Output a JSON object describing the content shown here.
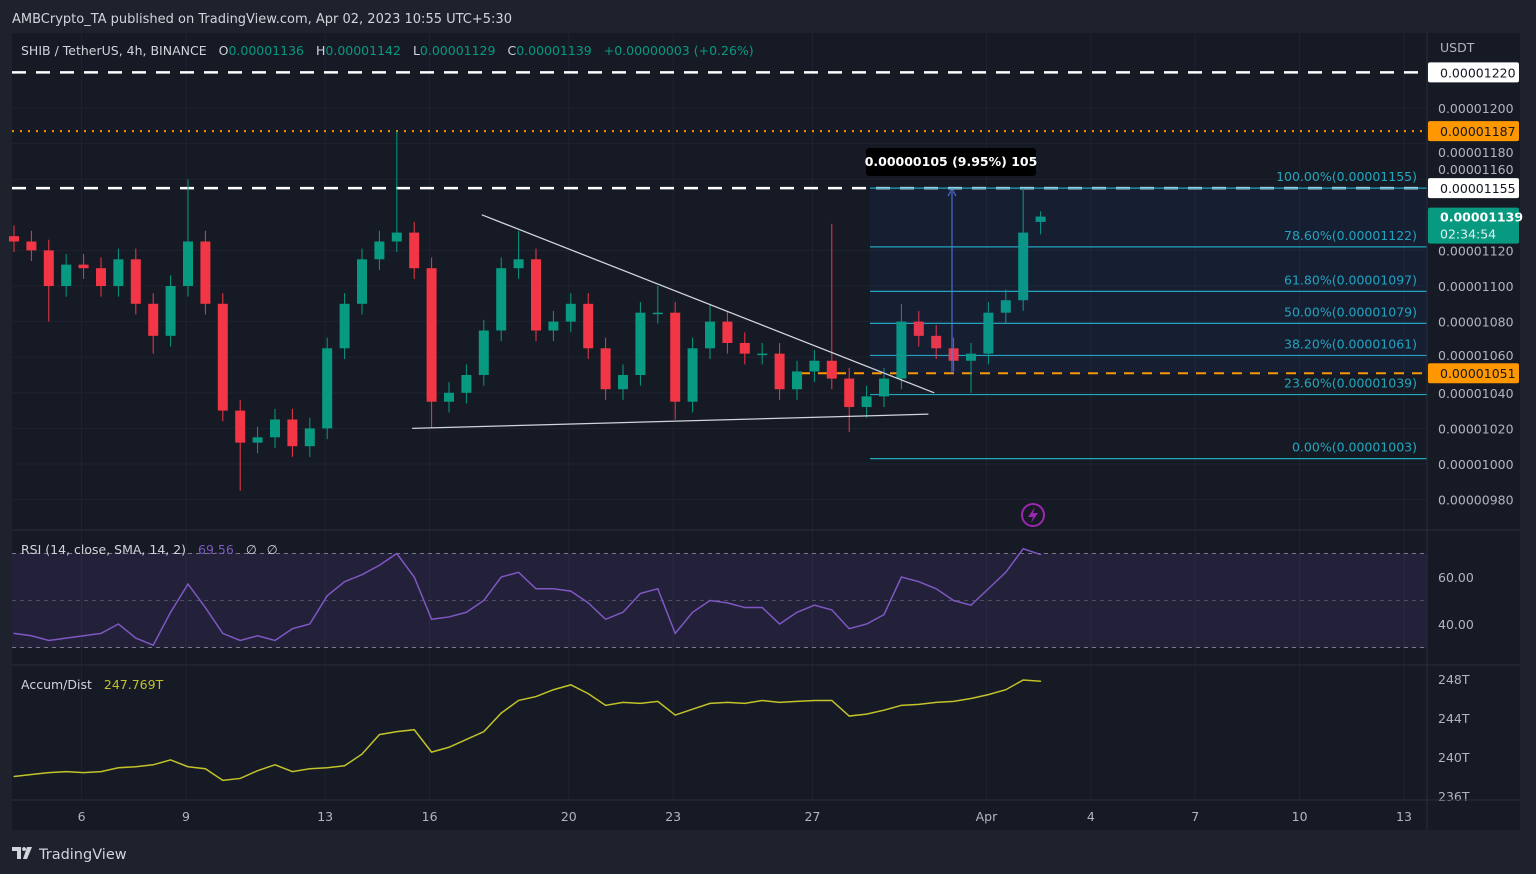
{
  "header": {
    "published": "AMBCrypto_TA published on TradingView.com, Apr 02, 2023 10:55 UTC+5:30"
  },
  "legend": {
    "symbol": "SHIB / TetherUS, 4h, BINANCE",
    "o_label": "O",
    "o": "0.00001136",
    "h_label": "H",
    "h": "0.00001142",
    "l_label": "L",
    "l": "0.00001129",
    "c_label": "C",
    "c": "0.00001139",
    "change": "+0.00000003 (+0.26%)"
  },
  "colors": {
    "bg": "#161a25",
    "up": "#089981",
    "down": "#f23645",
    "fib": "#22a7bd",
    "orange": "#ff9800",
    "rsi": "#7e57c2",
    "ad": "#c2c22a"
  },
  "price_axis": {
    "unit": "USDT",
    "ticks": [
      "0.00001200",
      "0.00001180",
      "0.00001160",
      "0.00001120",
      "0.00001100",
      "0.00001080",
      "0.00001060",
      "0.00001040",
      "0.00001020",
      "0.00001000",
      "0.00000980"
    ],
    "badges": [
      {
        "value": "0.00001220",
        "style": "white"
      },
      {
        "value": "0.00001187",
        "style": "orange"
      },
      {
        "value": "0.00001155",
        "style": "white"
      },
      {
        "value": "0.00001051",
        "style": "orange"
      }
    ],
    "last_price": "0.00001139",
    "countdown": "02:34:54"
  },
  "time_axis": {
    "ticks": [
      {
        "date": "2023-03-06",
        "label": "6"
      },
      {
        "date": "2023-03-09",
        "label": "9"
      },
      {
        "date": "2023-03-13",
        "label": "13"
      },
      {
        "date": "2023-03-16",
        "label": "16"
      },
      {
        "date": "2023-03-20",
        "label": "20"
      },
      {
        "date": "2023-03-23",
        "label": "23"
      },
      {
        "date": "2023-03-27",
        "label": "27"
      },
      {
        "date": "2023-04-01",
        "label": "Apr"
      },
      {
        "date": "2023-04-04",
        "label": "4"
      },
      {
        "date": "2023-04-07",
        "label": "7"
      },
      {
        "date": "2023-04-10",
        "label": "10"
      },
      {
        "date": "2023-04-13",
        "label": "13"
      }
    ]
  },
  "levels": {
    "white_dashed": [
      1.22e-05,
      1.155e-05
    ],
    "orange_dotted": 1.187e-05,
    "orange_dashed": 1.051e-05
  },
  "fib": [
    {
      "label": "100.00%(0.00001155)",
      "price": 1.155e-05
    },
    {
      "label": "78.60%(0.00001122)",
      "price": 1.122e-05
    },
    {
      "label": "61.80%(0.00001097)",
      "price": 1.097e-05
    },
    {
      "label": "50.00%(0.00001079)",
      "price": 1.079e-05
    },
    {
      "label": "38.20%(0.00001061)",
      "price": 1.061e-05
    },
    {
      "label": "23.60%(0.00001039)",
      "price": 1.039e-05
    },
    {
      "label": "0.00%(0.00001003)",
      "price": 1.003e-05
    }
  ],
  "measure": {
    "label": "0.00000105 (9.95%) 105"
  },
  "rsi": {
    "label": "RSI (14, close, SMA, 14, 2)",
    "value": "69.56",
    "extra1": "∅",
    "extra2": "∅",
    "ticks": [
      "60.00",
      "40.00"
    ],
    "bands": [
      70,
      30
    ]
  },
  "ad": {
    "label": "Accum/Dist",
    "value": "247.769T",
    "ticks": [
      "248T",
      "244T",
      "240T",
      "236T"
    ]
  },
  "footer": {
    "brand": "TradingView"
  },
  "chart_data": {
    "type": "candlestick",
    "title": "SHIB / TetherUS, 4h, BINANCE",
    "x_start": "2023-03-04 00:00",
    "sample_interval": "12h",
    "ylim": [
      9.7e-06,
      1.23e-05
    ],
    "ohlc": [
      [
        1.128e-05,
        1.134e-05,
        1.119e-05,
        1.125e-05
      ],
      [
        1.125e-05,
        1.131e-05,
        1.114e-05,
        1.12e-05
      ],
      [
        1.12e-05,
        1.126e-05,
        1.08e-05,
        1.1e-05
      ],
      [
        1.1e-05,
        1.118e-05,
        1.094e-05,
        1.112e-05
      ],
      [
        1.112e-05,
        1.118e-05,
        1.104e-05,
        1.11e-05
      ],
      [
        1.11e-05,
        1.116e-05,
        1.094e-05,
        1.1e-05
      ],
      [
        1.1e-05,
        1.121e-05,
        1.094e-05,
        1.115e-05
      ],
      [
        1.115e-05,
        1.121e-05,
        1.084e-05,
        1.09e-05
      ],
      [
        1.09e-05,
        1.096e-05,
        1.062e-05,
        1.072e-05
      ],
      [
        1.072e-05,
        1.106e-05,
        1.066e-05,
        1.1e-05
      ],
      [
        1.1e-05,
        1.16e-05,
        1.094e-05,
        1.125e-05
      ],
      [
        1.125e-05,
        1.131e-05,
        1.084e-05,
        1.09e-05
      ],
      [
        1.09e-05,
        1.096e-05,
        1.024e-05,
        1.03e-05
      ],
      [
        1.03e-05,
        1.036e-05,
        9.85e-06,
        1.012e-05
      ],
      [
        1.012e-05,
        1.021e-05,
        1.006e-05,
        1.015e-05
      ],
      [
        1.015e-05,
        1.031e-05,
        1.009e-05,
        1.025e-05
      ],
      [
        1.025e-05,
        1.031e-05,
        1.004e-05,
        1.01e-05
      ],
      [
        1.01e-05,
        1.026e-05,
        1.004e-05,
        1.02e-05
      ],
      [
        1.02e-05,
        1.071e-05,
        1.014e-05,
        1.065e-05
      ],
      [
        1.065e-05,
        1.096e-05,
        1.059e-05,
        1.09e-05
      ],
      [
        1.09e-05,
        1.121e-05,
        1.084e-05,
        1.115e-05
      ],
      [
        1.115e-05,
        1.131e-05,
        1.109e-05,
        1.125e-05
      ],
      [
        1.125e-05,
        1.187e-05,
        1.119e-05,
        1.13e-05
      ],
      [
        1.13e-05,
        1.136e-05,
        1.104e-05,
        1.11e-05
      ],
      [
        1.11e-05,
        1.116e-05,
        1.02e-05,
        1.035e-05
      ],
      [
        1.035e-05,
        1.046e-05,
        1.029e-05,
        1.04e-05
      ],
      [
        1.04e-05,
        1.056e-05,
        1.034e-05,
        1.05e-05
      ],
      [
        1.05e-05,
        1.081e-05,
        1.044e-05,
        1.075e-05
      ],
      [
        1.075e-05,
        1.116e-05,
        1.069e-05,
        1.11e-05
      ],
      [
        1.11e-05,
        1.131e-05,
        1.104e-05,
        1.115e-05
      ],
      [
        1.115e-05,
        1.121e-05,
        1.069e-05,
        1.075e-05
      ],
      [
        1.075e-05,
        1.086e-05,
        1.069e-05,
        1.08e-05
      ],
      [
        1.08e-05,
        1.096e-05,
        1.074e-05,
        1.09e-05
      ],
      [
        1.09e-05,
        1.096e-05,
        1.059e-05,
        1.065e-05
      ],
      [
        1.065e-05,
        1.071e-05,
        1.036e-05,
        1.042e-05
      ],
      [
        1.042e-05,
        1.056e-05,
        1.036e-05,
        1.05e-05
      ],
      [
        1.05e-05,
        1.091e-05,
        1.044e-05,
        1.085e-05
      ],
      [
        1.085e-05,
        1.1e-05,
        1.079e-05,
        1.085e-05
      ],
      [
        1.085e-05,
        1.091e-05,
        1.025e-05,
        1.035e-05
      ],
      [
        1.035e-05,
        1.071e-05,
        1.029e-05,
        1.065e-05
      ],
      [
        1.065e-05,
        1.09e-05,
        1.059e-05,
        1.08e-05
      ],
      [
        1.08e-05,
        1.086e-05,
        1.062e-05,
        1.068e-05
      ],
      [
        1.068e-05,
        1.074e-05,
        1.056e-05,
        1.062e-05
      ],
      [
        1.062e-05,
        1.068e-05,
        1.056e-05,
        1.062e-05
      ],
      [
        1.062e-05,
        1.068e-05,
        1.036e-05,
        1.042e-05
      ],
      [
        1.042e-05,
        1.058e-05,
        1.036e-05,
        1.052e-05
      ],
      [
        1.052e-05,
        1.064e-05,
        1.046e-05,
        1.058e-05
      ],
      [
        1.058e-05,
        1.135e-05,
        1.042e-05,
        1.048e-05
      ],
      [
        1.048e-05,
        1.054e-05,
        1.018e-05,
        1.032e-05
      ],
      [
        1.032e-05,
        1.044e-05,
        1.026e-05,
        1.038e-05
      ],
      [
        1.038e-05,
        1.054e-05,
        1.032e-05,
        1.048e-05
      ],
      [
        1.048e-05,
        1.09e-05,
        1.042e-05,
        1.08e-05
      ],
      [
        1.08e-05,
        1.086e-05,
        1.066e-05,
        1.072e-05
      ],
      [
        1.072e-05,
        1.078e-05,
        1.059e-05,
        1.065e-05
      ],
      [
        1.065e-05,
        1.071e-05,
        1.052e-05,
        1.058e-05
      ],
      [
        1.058e-05,
        1.068e-05,
        1.04e-05,
        1.062e-05
      ],
      [
        1.062e-05,
        1.091e-05,
        1.056e-05,
        1.085e-05
      ],
      [
        1.085e-05,
        1.098e-05,
        1.079e-05,
        1.092e-05
      ],
      [
        1.092e-05,
        1.155e-05,
        1.086e-05,
        1.13e-05
      ],
      [
        1.136e-05,
        1.142e-05,
        1.129e-05,
        1.139e-05
      ]
    ],
    "rsi": [
      36,
      35,
      33,
      34,
      35,
      36,
      40,
      34,
      31,
      45,
      57,
      47,
      36,
      33,
      35,
      33,
      38,
      40,
      52,
      58,
      61,
      65,
      70,
      60,
      42,
      43,
      45,
      50,
      60,
      62,
      55,
      55,
      54,
      49,
      42,
      45,
      53,
      55,
      36,
      45,
      50,
      49,
      47,
      47,
      40,
      45,
      48,
      46,
      38,
      40,
      44,
      60,
      58,
      55,
      50,
      48,
      55,
      62,
      72,
      69.56
    ],
    "rsi_ylim": [
      20,
      80
    ],
    "accum_dist_T": [
      238.0,
      238.2,
      238.4,
      238.5,
      238.4,
      238.5,
      238.9,
      239.0,
      239.2,
      239.7,
      239.0,
      238.8,
      237.6,
      237.8,
      238.6,
      239.2,
      238.5,
      238.8,
      238.9,
      239.1,
      240.3,
      242.3,
      242.6,
      242.8,
      240.5,
      241.0,
      241.8,
      242.6,
      244.5,
      245.8,
      246.2,
      246.9,
      247.4,
      246.5,
      245.3,
      245.6,
      245.5,
      245.7,
      244.3,
      244.9,
      245.5,
      245.6,
      245.5,
      245.8,
      245.6,
      245.7,
      245.8,
      245.8,
      244.2,
      244.4,
      244.8,
      245.3,
      245.4,
      245.6,
      245.7,
      246.0,
      246.4,
      246.9,
      247.9,
      247.769
    ],
    "trendlines": [
      {
        "name": "triangle-upper",
        "from": [
          "2023-03-17 12:00",
          1.14e-05
        ],
        "to": [
          "2023-03-30 12:00",
          1.04e-05
        ]
      },
      {
        "name": "triangle-lower",
        "from": [
          "2023-03-15 12:00",
          1.02e-05
        ],
        "to": [
          "2023-03-30 08:00",
          1.028e-05
        ]
      }
    ]
  }
}
